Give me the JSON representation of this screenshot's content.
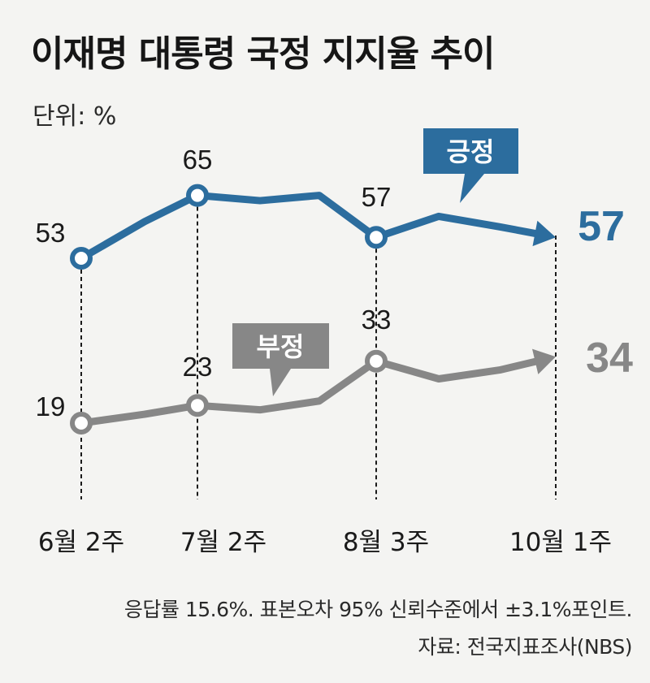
{
  "title": "이재명 대통령 국정 지지율 추이",
  "unit_label": "단위: %",
  "notes": {
    "survey": "응답률 15.6%. 표본오차 95% 신뢰수준에서 ±3.1%포인트.",
    "source": "자료: 전국지표조사(NBS)"
  },
  "colors": {
    "positive": "#2c6d9e",
    "negative": "#878787",
    "background": "#f4f4f2"
  },
  "chart_data": {
    "type": "line",
    "title": "이재명 대통령 국정 지지율 추이",
    "ylabel": "단위: %",
    "x_tick_labels": [
      "6월 2주",
      "7월 2주",
      "8월 3주",
      "10월 1주"
    ],
    "x": [
      0,
      1,
      2,
      3,
      4,
      5,
      6,
      7,
      8
    ],
    "series": [
      {
        "name": "긍정",
        "color": "#2c6d9e",
        "values": [
          53,
          60,
          65,
          64,
          65,
          57,
          61,
          59,
          57
        ],
        "labels": [
          "53",
          "65",
          "57",
          "57"
        ],
        "final_label": "57"
      },
      {
        "name": "부정",
        "color": "#878787",
        "values": [
          19,
          21,
          23,
          22,
          24,
          33,
          29,
          31,
          34
        ],
        "labels": [
          "19",
          "23",
          "33",
          "34"
        ],
        "final_label": "34"
      }
    ]
  }
}
